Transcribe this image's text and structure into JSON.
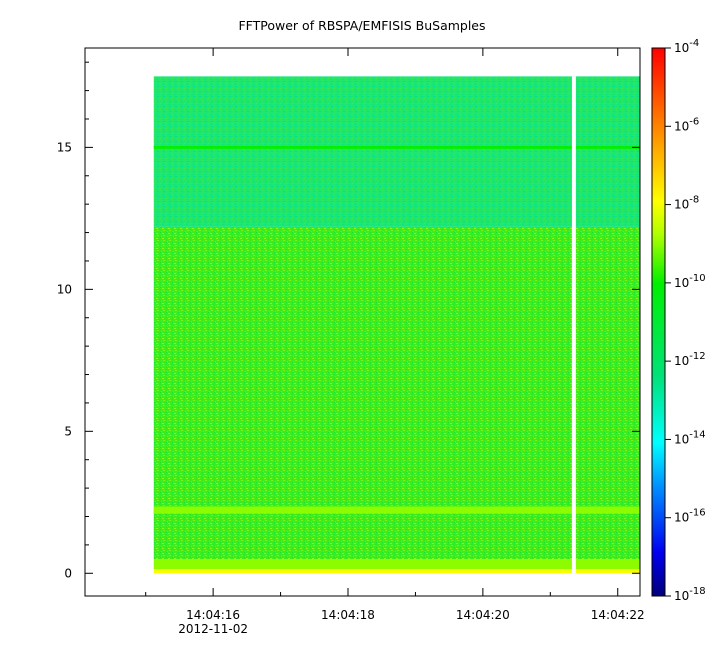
{
  "chart_data": {
    "type": "heatmap",
    "title": "FFTPower of RBSPA/EMFISIS  BuSamples",
    "xlabel": "",
    "ylabel": "",
    "x_axis": {
      "type": "time",
      "range": [
        "14:04:14.10",
        "14:04:22.33"
      ],
      "ticks": [
        "14:04:16",
        "14:04:18",
        "14:04:20",
        "14:04:22"
      ],
      "date_label": "2012-11-02"
    },
    "y_axis": {
      "range": [
        -0.8,
        18.5
      ],
      "ticks": [
        0,
        5,
        10,
        15
      ]
    },
    "colorbar": {
      "scale": "log",
      "range": [
        "1e-18",
        "1e-4"
      ],
      "tick_bases": [
        "10",
        "10",
        "10",
        "10",
        "10",
        "10",
        "10",
        "10"
      ],
      "tick_exponents": [
        "-18",
        "-16",
        "-14",
        "-12",
        "-10",
        "-8",
        "-6",
        "-4"
      ]
    },
    "data_extent": {
      "x_start": "14:04:15.12",
      "x_end": "14:04:22.33",
      "y_range": [
        0,
        17.5
      ],
      "gap_at": "14:04:21.35"
    },
    "bands": [
      {
        "y_range": [
          0,
          0.15
        ],
        "level": "1e-8"
      },
      {
        "y_range": [
          0.15,
          0.5
        ],
        "level": "1e-9"
      },
      {
        "y_range": [
          0.5,
          12.2
        ],
        "level": "1e-10"
      },
      {
        "y_range": [
          12.2,
          17.5
        ],
        "level": "1e-12"
      },
      {
        "y_range": [
          14.95,
          15.05
        ],
        "level": "1e-10"
      },
      {
        "y_range": [
          2.1,
          2.35
        ],
        "level": "1e-9"
      }
    ],
    "grid": false,
    "legend": "none"
  }
}
